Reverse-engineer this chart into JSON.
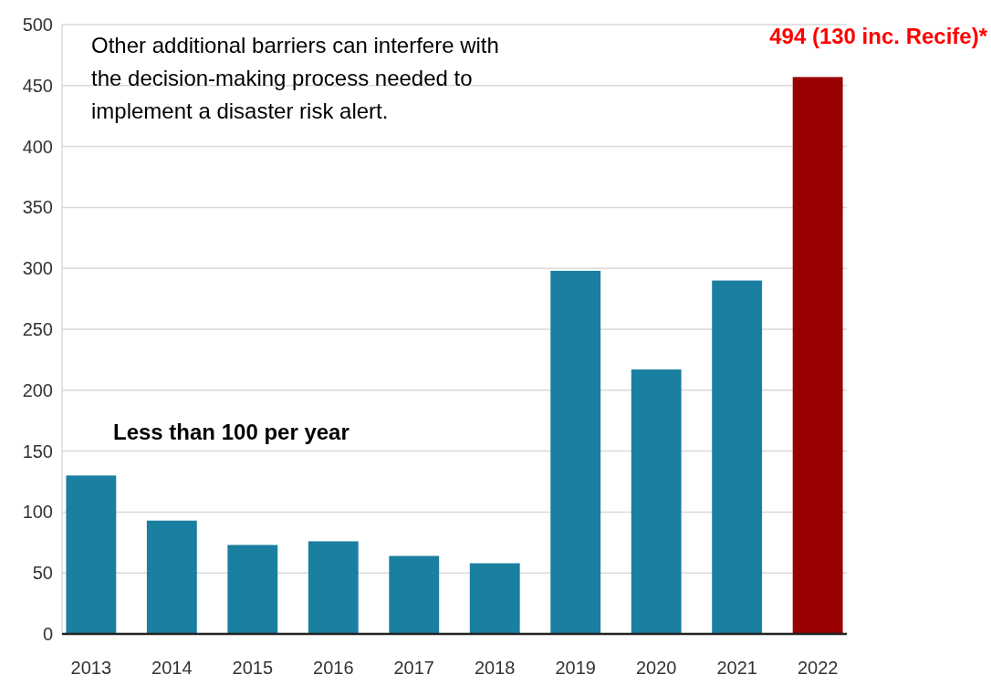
{
  "chart_data": {
    "type": "bar",
    "categories": [
      "2013",
      "2014",
      "2015",
      "2016",
      "2017",
      "2018",
      "2019",
      "2020",
      "2021",
      "2022"
    ],
    "values": [
      130,
      93,
      73,
      76,
      64,
      58,
      298,
      217,
      290,
      457
    ],
    "colors": [
      "#1a7fa0",
      "#1a7fa0",
      "#1a7fa0",
      "#1a7fa0",
      "#1a7fa0",
      "#1a7fa0",
      "#1a7fa0",
      "#1a7fa0",
      "#1a7fa0",
      "#990000"
    ],
    "ylim": [
      0,
      500
    ],
    "yticks": [
      0,
      50,
      100,
      150,
      200,
      250,
      300,
      350,
      400,
      450,
      500
    ],
    "grid": "y",
    "annotations": [
      "Other additional barriers can interfere with the decision-making process needed to implement a disaster risk alert.",
      "Less than 100 per year",
      "494 (130 inc. Recife)*"
    ]
  }
}
